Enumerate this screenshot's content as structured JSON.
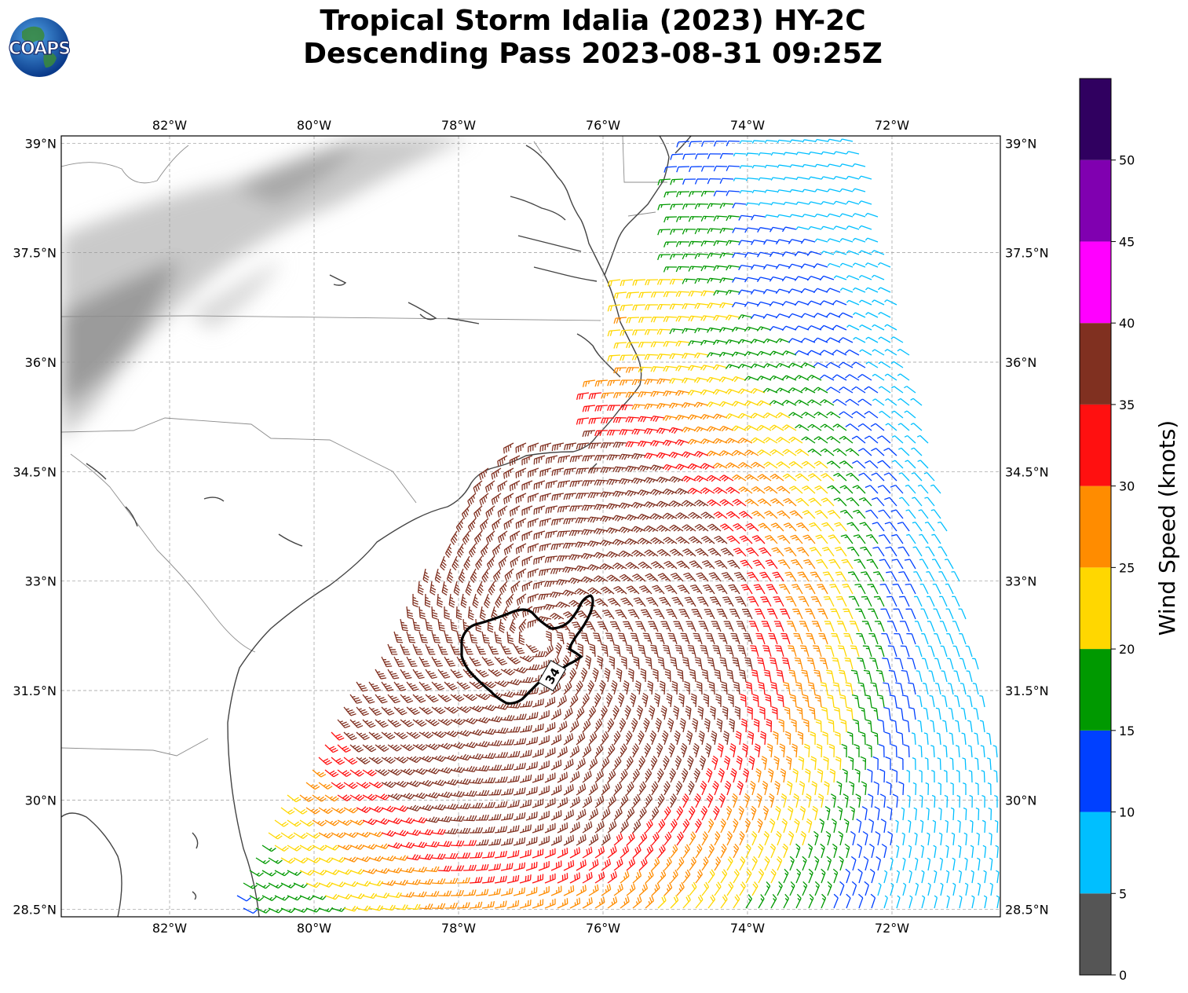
{
  "title": {
    "line1": "Tropical Storm Idalia (2023) HY-2C",
    "line2": "Descending Pass 2023-08-31 09:25Z"
  },
  "logo": {
    "text": "COAPS"
  },
  "map": {
    "lon_range": [
      -83.5,
      -70.5
    ],
    "lat_range": [
      28.4,
      39.1
    ],
    "lon_ticks": [
      {
        "value": -82,
        "label": "82°W"
      },
      {
        "value": -80,
        "label": "80°W"
      },
      {
        "value": -78,
        "label": "78°W"
      },
      {
        "value": -76,
        "label": "76°W"
      },
      {
        "value": -74,
        "label": "74°W"
      },
      {
        "value": -72,
        "label": "72°W"
      }
    ],
    "lat_ticks": [
      {
        "value": 39,
        "label": "39°N"
      },
      {
        "value": 37.5,
        "label": "37.5°N"
      },
      {
        "value": 36,
        "label": "36°N"
      },
      {
        "value": 34.5,
        "label": "34.5°N"
      },
      {
        "value": 33,
        "label": "33°N"
      },
      {
        "value": 31.5,
        "label": "31.5°N"
      },
      {
        "value": 30,
        "label": "30°N"
      },
      {
        "value": 28.5,
        "label": "28.5°N"
      }
    ],
    "grid": true,
    "storm_center": {
      "lon": -76.9,
      "lat": 32.2
    },
    "contour": {
      "label": "34",
      "value": 34
    }
  },
  "colorbar": {
    "label": "Wind Speed (knots)",
    "ticks": [
      "0",
      "5",
      "10",
      "15",
      "20",
      "25",
      "30",
      "35",
      "40",
      "45",
      "50"
    ],
    "bins": [
      {
        "from": 0,
        "to": 5,
        "color": "#555555"
      },
      {
        "from": 5,
        "to": 10,
        "color": "#00bfff"
      },
      {
        "from": 10,
        "to": 15,
        "color": "#0040ff"
      },
      {
        "from": 15,
        "to": 20,
        "color": "#009900"
      },
      {
        "from": 20,
        "to": 25,
        "color": "#ffd700"
      },
      {
        "from": 25,
        "to": 30,
        "color": "#ff8c00"
      },
      {
        "from": 30,
        "to": 35,
        "color": "#ff1010"
      },
      {
        "from": 35,
        "to": 40,
        "color": "#803020"
      },
      {
        "from": 40,
        "to": 45,
        "color": "#ff00ff"
      },
      {
        "from": 45,
        "to": 50,
        "color": "#8000b0"
      },
      {
        "from": 50,
        "to": 55,
        "color": "#300060"
      }
    ]
  }
}
